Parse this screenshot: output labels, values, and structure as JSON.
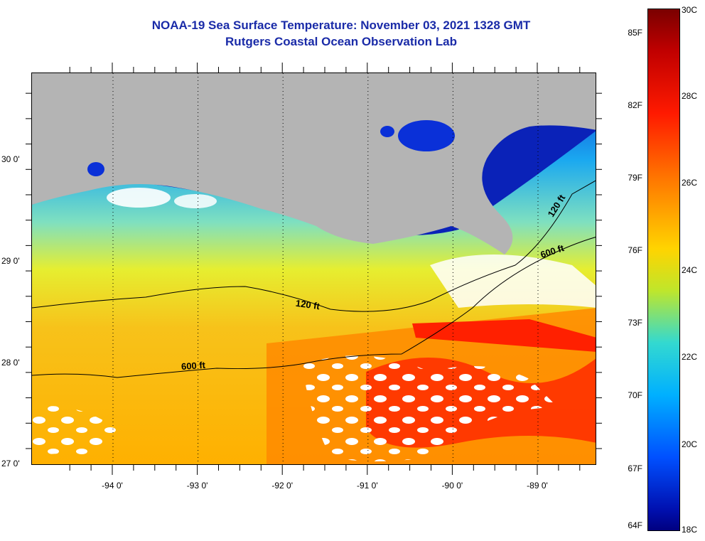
{
  "title_line1": "NOAA-19 Sea Surface Temperature:  November 03, 2021 1328 GMT",
  "title_line2": "Rutgers Coastal Ocean Observation Lab",
  "lat_labels": [
    {
      "text": "30 0'",
      "lat": 30.0
    },
    {
      "text": "29 0'",
      "lat": 29.0
    },
    {
      "text": "28 0'",
      "lat": 28.0
    },
    {
      "text": "27 0'",
      "lat": 27.0
    }
  ],
  "lon_labels": [
    {
      "text": "-94 0'",
      "lon": -94.0
    },
    {
      "text": "-93 0'",
      "lon": -93.0
    },
    {
      "text": "-92 0'",
      "lon": -92.0
    },
    {
      "text": "-91 0'",
      "lon": -91.0
    },
    {
      "text": "-90 0'",
      "lon": -90.0
    },
    {
      "text": "-89 0'",
      "lon": -89.0
    }
  ],
  "colorbar": {
    "fahrenheit": [
      "85F",
      "82F",
      "79F",
      "76F",
      "73F",
      "70F",
      "67F",
      "64F"
    ],
    "celsius": [
      "30C",
      "28C",
      "26C",
      "24C",
      "22C",
      "20C",
      "18C"
    ]
  },
  "contour_labels": [
    "600 ft",
    "120 ft",
    "120 ft",
    "600 ft"
  ],
  "colors": {
    "land": "#b4b4b4",
    "title": "#1a2ba8",
    "cold": "#0010b0",
    "cool": "#00b0ff",
    "mid": "#bfe62b",
    "warm": "#ffb000",
    "hot": "#ff1a00"
  }
}
